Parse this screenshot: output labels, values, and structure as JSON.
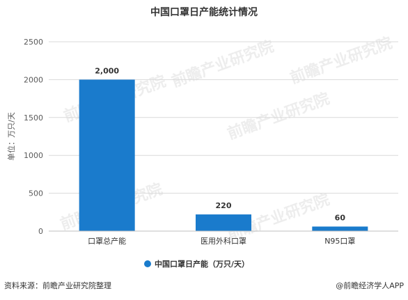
{
  "chart_data": {
    "type": "bar",
    "title": "中国口罩日产能统计情况",
    "ylabel": "单位：万只/天",
    "categories": [
      "口罩总产能",
      "医用外科口罩",
      "N95口罩"
    ],
    "series": [
      {
        "name": "中国口罩日产能（万只/天）",
        "values": [
          2000,
          220,
          60
        ],
        "value_labels": [
          "2,000",
          "220",
          "60"
        ],
        "color": "#1a7bcc"
      }
    ],
    "ylim": [
      0,
      2500
    ],
    "yticks": [
      0,
      500,
      1000,
      1500,
      2000,
      2500
    ],
    "grid": true,
    "legend": "bottom"
  },
  "footer": {
    "source": "资料来源：前瞻产业研究院整理",
    "credit": "@前瞻经济学人APP"
  },
  "watermark": "前瞻产业研究院"
}
